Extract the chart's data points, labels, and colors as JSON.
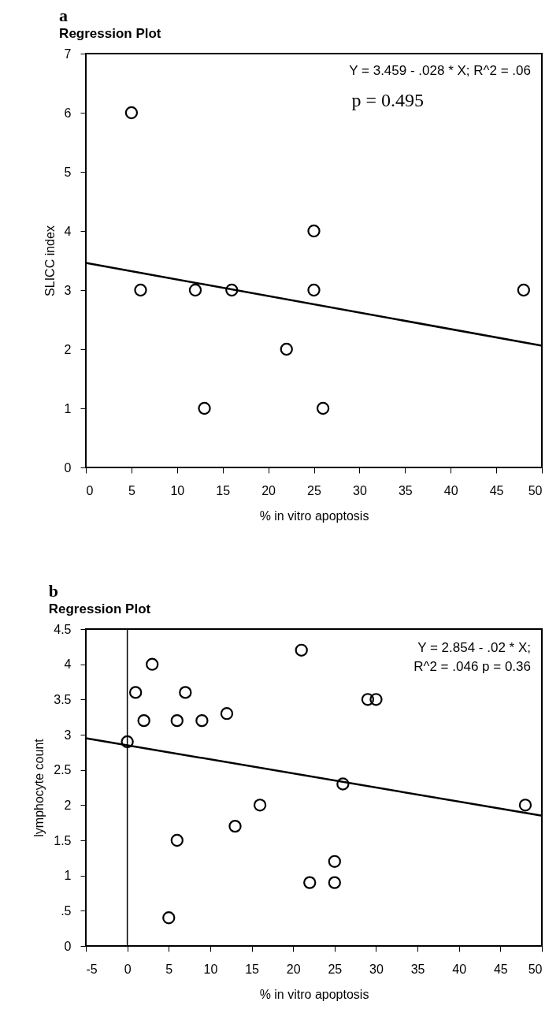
{
  "chart_data": [
    {
      "type": "scatter",
      "title": "a",
      "subtitle": "Regression Plot",
      "xlabel": "% in vitro apoptosis",
      "ylabel": "SLICC index",
      "marker": "circle",
      "xlim": [
        0,
        50
      ],
      "ylim": [
        0,
        7
      ],
      "xticks": [
        0,
        5,
        10,
        15,
        20,
        25,
        30,
        35,
        40,
        45,
        50
      ],
      "yticks": [
        0,
        1,
        2,
        3,
        4,
        5,
        6,
        7
      ],
      "series": [
        {
          "color": "#000000",
          "x": [
            5,
            6,
            12,
            13,
            16,
            22,
            25,
            25,
            26,
            48
          ],
          "values": [
            6,
            3,
            3,
            1,
            3,
            2,
            4,
            3,
            1,
            3
          ]
        },
        {
          "type": "line",
          "color": "#000000",
          "line_style": "solid",
          "marker": "none",
          "x": [
            0,
            50
          ],
          "values": [
            3.46,
            2.06
          ]
        }
      ],
      "annotations": [
        "Y = 3.459 - .028 * X;    R^2 = .06",
        "p = 0.495"
      ]
    },
    {
      "type": "scatter",
      "title": "b",
      "subtitle": "Regression Plot",
      "xlabel": "% in vitro apoptosis",
      "ylabel": "lymphocyte count",
      "marker": "circle",
      "xlim": [
        -5,
        50
      ],
      "ylim": [
        0,
        4.5
      ],
      "xticks": [
        -5,
        0,
        5,
        10,
        15,
        20,
        25,
        30,
        35,
        40,
        45,
        50
      ],
      "yticks": [
        0,
        {
          "value": 0.5,
          "label": ".5"
        },
        1,
        1.5,
        2,
        2.5,
        3,
        3.5,
        4,
        4.5
      ],
      "series": [
        {
          "color": "#000000",
          "x": [
            0,
            1,
            2,
            3,
            5,
            6,
            6,
            7,
            9,
            12,
            13,
            16,
            21,
            22,
            25,
            25,
            26,
            29,
            30,
            48
          ],
          "values": [
            2.9,
            3.6,
            3.2,
            4,
            0.4,
            3.2,
            1.5,
            3.6,
            3.2,
            3.3,
            1.7,
            2,
            4.2,
            0.9,
            1.2,
            0.9,
            2.3,
            3.5,
            3.5,
            2
          ]
        },
        {
          "type": "line",
          "color": "#000000",
          "line_style": "solid",
          "marker": "none",
          "x": [
            -5,
            50
          ],
          "values": [
            2.95,
            1.85
          ]
        }
      ],
      "ref_lines": [
        {
          "axis": "x",
          "value": 0,
          "color": "#000000",
          "line_style": "solid"
        }
      ],
      "annotations": [
        "Y = 2.854 - .02 * X;",
        "R^2 = .046 p = 0.36"
      ]
    }
  ]
}
